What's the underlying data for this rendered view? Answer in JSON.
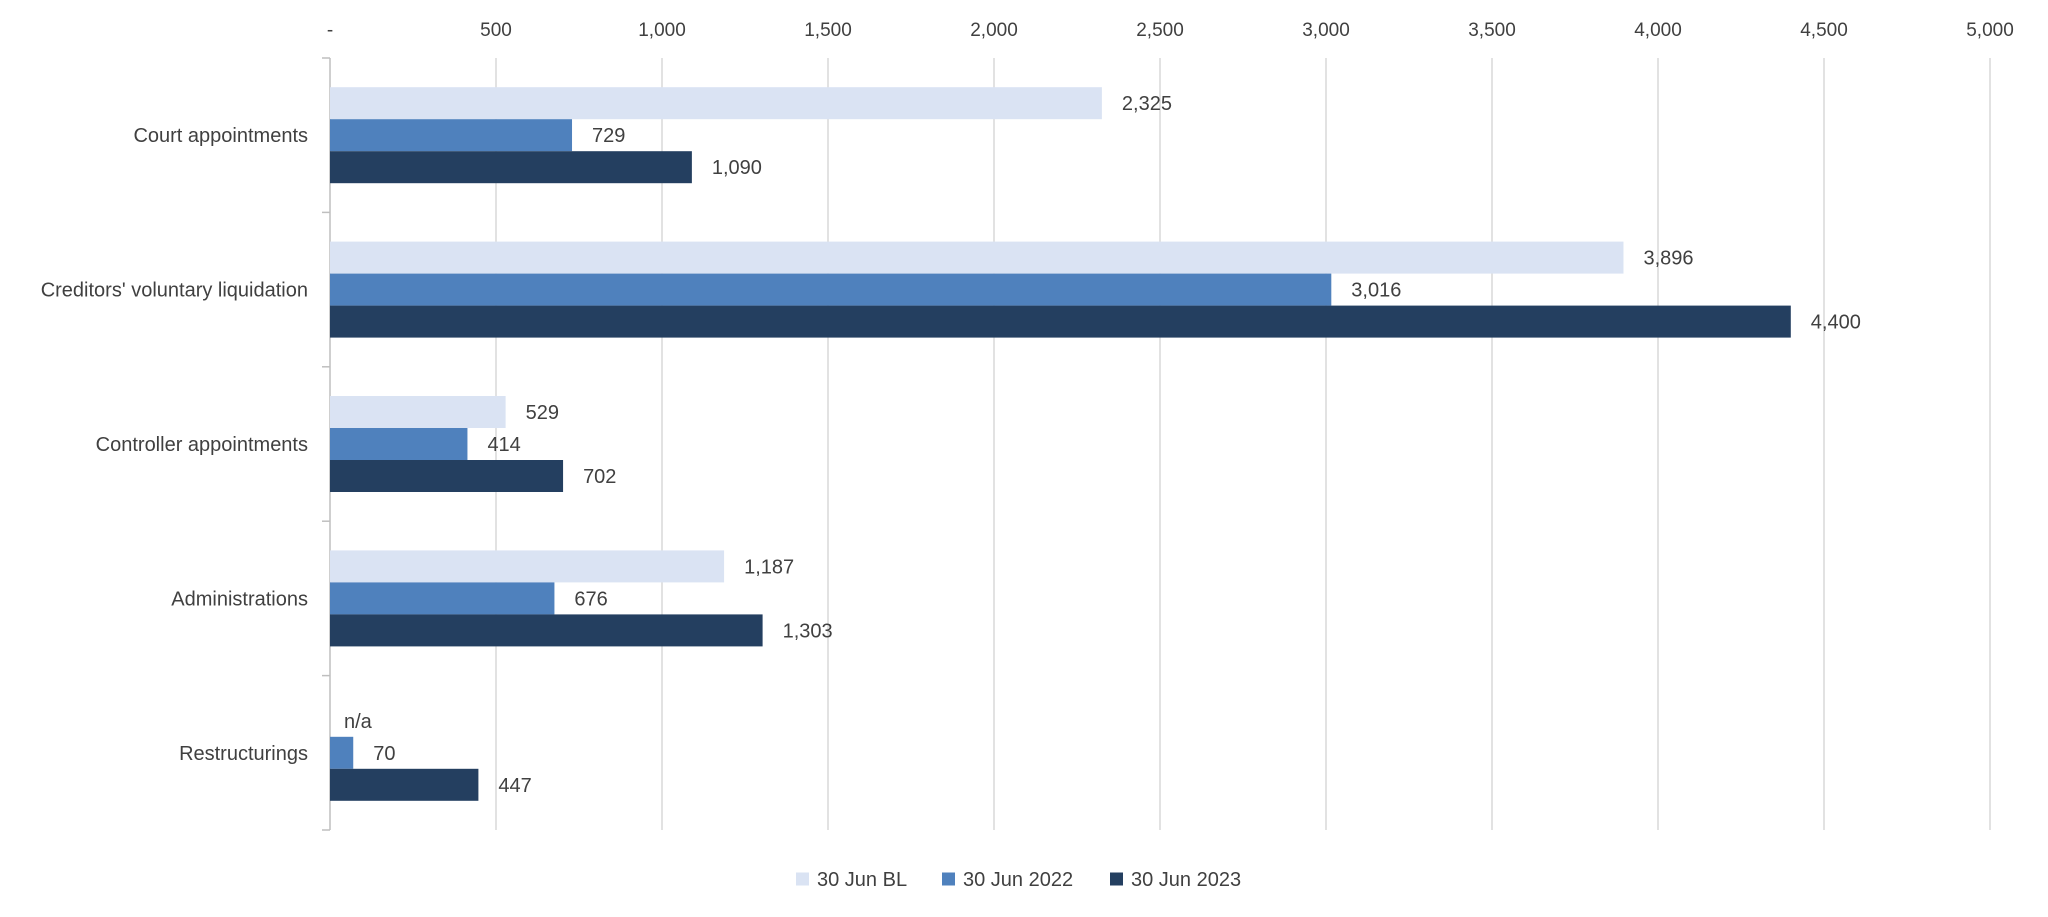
{
  "chart_data": {
    "type": "bar",
    "orientation": "horizontal",
    "categories": [
      "Court appointments",
      "Creditors' voluntary liquidation",
      "Controller appointments",
      "Administrations",
      "Restructurings"
    ],
    "series": [
      {
        "name": "30 Jun BL",
        "color": "#dae3f3",
        "values": [
          2325,
          3896,
          529,
          1187,
          null
        ],
        "labels": [
          "2,325",
          "3,896",
          "529",
          "1,187",
          "n/a"
        ]
      },
      {
        "name": "30 Jun 2022",
        "color": "#4f81bd",
        "values": [
          729,
          3016,
          414,
          676,
          70
        ],
        "labels": [
          "729",
          "3,016",
          "414",
          "676",
          "70"
        ]
      },
      {
        "name": "30 Jun 2023",
        "color": "#243f60",
        "values": [
          1090,
          4400,
          702,
          1303,
          447
        ],
        "labels": [
          "1,090",
          "4,400",
          "702",
          "1,303",
          "447"
        ]
      }
    ],
    "x_ticks": [
      "-",
      "500",
      "1,000",
      "1,500",
      "2,000",
      "2,500",
      "3,000",
      "3,500",
      "4,000",
      "4,500",
      "5,000"
    ],
    "xlim": [
      0,
      5000
    ],
    "x_axis_position": "top",
    "grid": true,
    "legend_position": "bottom"
  }
}
